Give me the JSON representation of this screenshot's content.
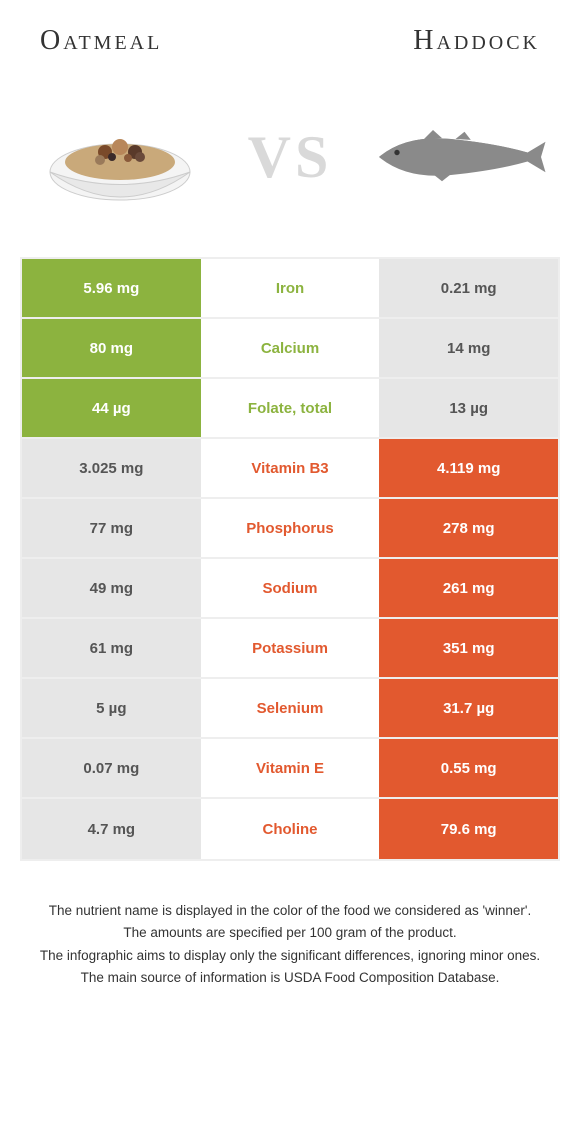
{
  "header": {
    "left_title": "Oatmeal",
    "right_title": "Haddock"
  },
  "vs_label": "VS",
  "colors": {
    "left_win": "#8cb33f",
    "right_win": "#e2592f",
    "lose_bg": "#e6e6e6",
    "lose_text": "#555555",
    "border": "#eeeeee"
  },
  "rows": [
    {
      "nutrient": "Iron",
      "left": "5.96 mg",
      "right": "0.21 mg",
      "winner": "left"
    },
    {
      "nutrient": "Calcium",
      "left": "80 mg",
      "right": "14 mg",
      "winner": "left"
    },
    {
      "nutrient": "Folate, total",
      "left": "44 µg",
      "right": "13 µg",
      "winner": "left"
    },
    {
      "nutrient": "Vitamin B3",
      "left": "3.025 mg",
      "right": "4.119 mg",
      "winner": "right"
    },
    {
      "nutrient": "Phosphorus",
      "left": "77 mg",
      "right": "278 mg",
      "winner": "right"
    },
    {
      "nutrient": "Sodium",
      "left": "49 mg",
      "right": "261 mg",
      "winner": "right"
    },
    {
      "nutrient": "Potassium",
      "left": "61 mg",
      "right": "351 mg",
      "winner": "right"
    },
    {
      "nutrient": "Selenium",
      "left": "5 µg",
      "right": "31.7 µg",
      "winner": "right"
    },
    {
      "nutrient": "Vitamin E",
      "left": "0.07 mg",
      "right": "0.55 mg",
      "winner": "right"
    },
    {
      "nutrient": "Choline",
      "left": "4.7 mg",
      "right": "79.6 mg",
      "winner": "right"
    }
  ],
  "footer": {
    "line1": "The nutrient name is displayed in the color of the food we considered as 'winner'.",
    "line2": "The amounts are specified per 100 gram of the product.",
    "line3": "The infographic aims to display only the significant differences, ignoring minor ones.",
    "line4": "The main source of information is USDA Food Composition Database."
  }
}
